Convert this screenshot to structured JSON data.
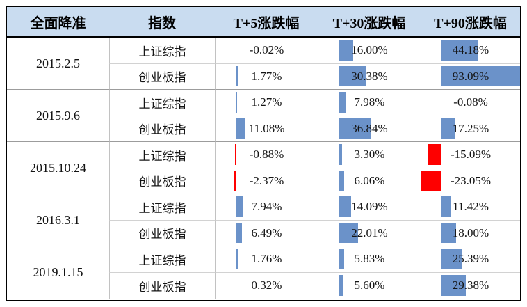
{
  "table": {
    "headers": [
      "全面降准",
      "指数",
      "T+5涨跌幅",
      "T+30涨跌幅",
      "T+90涨跌幅"
    ],
    "groups": [
      {
        "date": "2015.2.5",
        "rows": [
          {
            "index": "上证综指",
            "t5": -0.02,
            "t30": 16.0,
            "t90": 44.18
          },
          {
            "index": "创业板指",
            "t5": 1.77,
            "t30": 30.38,
            "t90": 93.09
          }
        ]
      },
      {
        "date": "2015.9.6",
        "rows": [
          {
            "index": "上证综指",
            "t5": 1.27,
            "t30": 7.98,
            "t90": -0.08
          },
          {
            "index": "创业板指",
            "t5": 11.08,
            "t30": 36.84,
            "t90": 17.25
          }
        ]
      },
      {
        "date": "2015.10.24",
        "rows": [
          {
            "index": "上证综指",
            "t5": -0.88,
            "t30": 3.3,
            "t90": -15.09
          },
          {
            "index": "创业板指",
            "t5": -2.37,
            "t30": 6.06,
            "t90": -23.05
          }
        ]
      },
      {
        "date": "2016.3.1",
        "rows": [
          {
            "index": "上证综指",
            "t5": 7.94,
            "t30": 14.09,
            "t90": 11.42
          },
          {
            "index": "创业板指",
            "t5": 6.49,
            "t30": 22.01,
            "t90": 18.0
          }
        ]
      },
      {
        "date": "2019.1.15",
        "rows": [
          {
            "index": "上证综指",
            "t5": 1.76,
            "t30": 5.83,
            "t90": 25.39
          },
          {
            "index": "创业板指",
            "t5": 0.32,
            "t30": 5.6,
            "t90": 29.38
          }
        ]
      }
    ]
  },
  "chart_data": {
    "type": "table",
    "columns": [
      "全面降准",
      "指数",
      "T+5涨跌幅",
      "T+30涨跌幅",
      "T+90涨跌幅"
    ],
    "unit": "%",
    "rows": [
      [
        "2015.2.5",
        "上证综指",
        -0.02,
        16.0,
        44.18
      ],
      [
        "2015.2.5",
        "创业板指",
        1.77,
        30.38,
        93.09
      ],
      [
        "2015.9.6",
        "上证综指",
        1.27,
        7.98,
        -0.08
      ],
      [
        "2015.9.6",
        "创业板指",
        11.08,
        36.84,
        17.25
      ],
      [
        "2015.10.24",
        "上证综指",
        -0.88,
        3.3,
        -15.09
      ],
      [
        "2015.10.24",
        "创业板指",
        -2.37,
        6.06,
        -23.05
      ],
      [
        "2016.3.1",
        "上证综指",
        7.94,
        14.09,
        11.42
      ],
      [
        "2016.3.1",
        "创业板指",
        6.49,
        22.01,
        18.0
      ],
      [
        "2019.1.15",
        "上证综指",
        1.76,
        5.83,
        25.39
      ],
      [
        "2019.1.15",
        "创业板指",
        0.32,
        5.6,
        29.38
      ]
    ],
    "databar": {
      "axis_min": -23.05,
      "axis_max": 93.09,
      "axis_position_pct": 20,
      "positive_color": "#6b92c9",
      "negative_color": "#fe0000"
    },
    "colors": {
      "header_bg": "#c9dcf0",
      "outer_border": "#000000",
      "gridline_vertical": "#c2c2c2",
      "gridline_row": "#d2d2d2",
      "gridline_group": "#9c9c9c"
    }
  }
}
